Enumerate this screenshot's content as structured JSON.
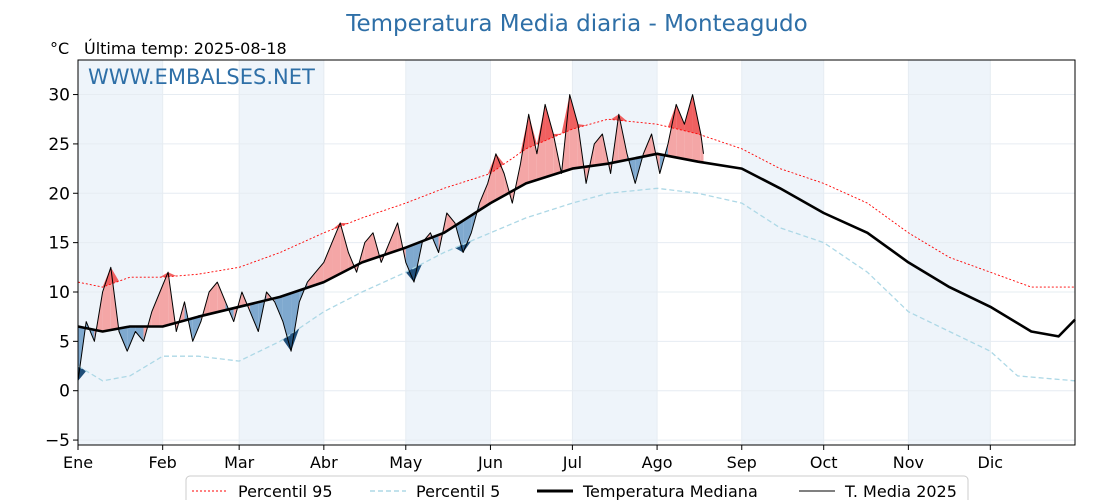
{
  "chart_data": {
    "type": "line",
    "title": "Temperatura Media diaria - Monteagudo",
    "unit_label": "°C",
    "last_temp_label": "Última temp: 2025-08-18",
    "watermark": "WWW.EMBALSES.NET",
    "ylim": [
      -5.5,
      33.5
    ],
    "y_ticks": [
      -5,
      0,
      5,
      10,
      15,
      20,
      25,
      30
    ],
    "x_tick_labels": [
      "Ene",
      "Feb",
      "Mar",
      "Abr",
      "May",
      "Jun",
      "Jul",
      "Ago",
      "Sep",
      "Oct",
      "Nov",
      "Dic"
    ],
    "x_tick_days": [
      1,
      32,
      60,
      91,
      121,
      152,
      182,
      213,
      244,
      274,
      305,
      335
    ],
    "x_range_days": [
      1,
      366
    ],
    "legend": {
      "p95": "Percentil 95",
      "p5": "Percentil 5",
      "median": "Temperatura Mediana",
      "t2025": "T. Media 2025"
    },
    "colors": {
      "p95": "#ff0000",
      "p5": "#add8e6",
      "median": "#000000",
      "t2025": "#000000",
      "above": "#f4a6a6",
      "above_strong": "#f06060",
      "below": "#7fa9cf",
      "below_strong": "#1f4e79",
      "band": "#eef4fa",
      "title": "#2e6fa7"
    },
    "series": [
      {
        "key": "p95",
        "name": "Percentil 95",
        "x": [
          1,
          10,
          20,
          32,
          45,
          60,
          75,
          91,
          105,
          121,
          135,
          152,
          165,
          182,
          195,
          213,
          228,
          244,
          258,
          274,
          290,
          305,
          320,
          335,
          350,
          366
        ],
        "y": [
          11,
          10.5,
          11.5,
          11.5,
          11.8,
          12.5,
          14,
          16,
          17.5,
          19,
          20.5,
          22,
          24.5,
          26.5,
          27.5,
          27,
          26,
          24.5,
          22.5,
          21,
          19,
          16,
          13.5,
          12,
          10.5,
          10.5
        ]
      },
      {
        "key": "p5",
        "name": "Percentil 5",
        "x": [
          1,
          10,
          20,
          32,
          45,
          60,
          75,
          91,
          105,
          121,
          135,
          152,
          165,
          182,
          195,
          213,
          228,
          244,
          258,
          274,
          290,
          305,
          320,
          335,
          345,
          366
        ],
        "y": [
          2.5,
          1,
          1.5,
          3.5,
          3.5,
          3,
          5,
          8,
          10,
          12,
          14,
          16,
          17.5,
          19,
          20,
          20.5,
          20,
          19,
          16.5,
          15,
          12,
          8,
          6,
          4,
          1.5,
          1
        ]
      },
      {
        "key": "median",
        "name": "Temperatura Mediana",
        "x": [
          1,
          10,
          20,
          32,
          45,
          60,
          75,
          91,
          105,
          121,
          135,
          152,
          165,
          182,
          195,
          213,
          228,
          244,
          258,
          274,
          290,
          305,
          320,
          335,
          350,
          360,
          366
        ],
        "y": [
          6.5,
          6,
          6.5,
          6.5,
          7.5,
          8.5,
          9.5,
          11,
          13,
          14.5,
          16,
          19,
          21,
          22.5,
          23,
          24,
          23.2,
          22.5,
          20.5,
          18,
          16,
          13,
          10.5,
          8.5,
          6,
          5.5,
          7.2
        ]
      },
      {
        "key": "t2025",
        "name": "T. Media 2025",
        "x": [
          1,
          4,
          7,
          10,
          13,
          16,
          19,
          22,
          25,
          28,
          31,
          34,
          37,
          40,
          43,
          46,
          49,
          52,
          55,
          58,
          61,
          64,
          67,
          70,
          73,
          76,
          79,
          82,
          85,
          88,
          91,
          94,
          97,
          100,
          103,
          106,
          109,
          112,
          115,
          118,
          121,
          124,
          127,
          130,
          133,
          136,
          139,
          142,
          145,
          148,
          151,
          154,
          157,
          160,
          163,
          166,
          169,
          172,
          175,
          178,
          181,
          184,
          187,
          190,
          193,
          196,
          199,
          202,
          205,
          208,
          211,
          214,
          217,
          220,
          223,
          226,
          229,
          230
        ],
        "y": [
          1,
          7,
          5,
          10,
          12.5,
          6,
          4,
          6,
          5,
          8,
          10,
          12,
          6,
          9,
          5,
          7,
          10,
          11,
          9,
          7,
          10,
          8,
          6,
          10,
          9,
          7,
          4,
          9,
          11,
          12,
          13,
          15,
          17,
          14,
          12,
          15,
          16,
          13,
          15,
          17,
          13,
          11,
          15,
          16,
          14,
          18,
          17,
          14,
          16,
          19,
          21,
          24,
          22,
          19,
          23,
          28,
          24,
          29,
          26,
          22,
          30,
          27,
          21,
          25,
          26,
          22,
          28,
          24,
          21,
          24,
          26,
          22,
          25,
          29,
          27,
          30,
          26,
          24
        ]
      }
    ]
  }
}
